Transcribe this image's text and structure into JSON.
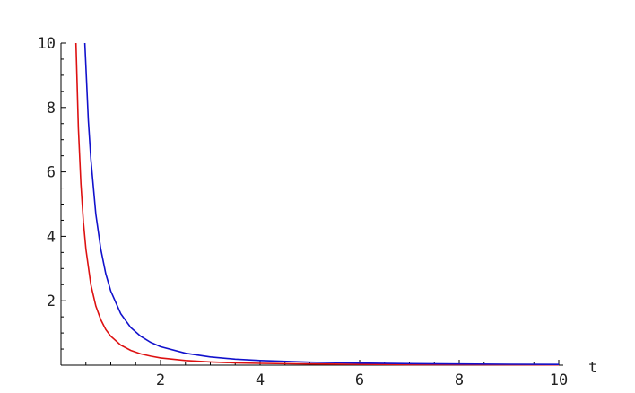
{
  "chart_data": {
    "type": "line",
    "title": "",
    "xlabel": "t",
    "ylabel": "",
    "xlim": [
      0,
      10
    ],
    "ylim": [
      0,
      10
    ],
    "x_ticks": [
      2,
      4,
      6,
      8,
      10
    ],
    "x_tick_labels": [
      "2",
      "4",
      "6",
      "8",
      "10"
    ],
    "y_ticks": [
      2,
      4,
      6,
      8,
      10
    ],
    "y_tick_labels": [
      "2",
      "4",
      "6",
      "8",
      "10"
    ],
    "grid": false,
    "legend": "none",
    "series": [
      {
        "color": "#dd1111",
        "x": [
          0.3,
          0.35,
          0.4,
          0.45,
          0.5,
          0.6,
          0.7,
          0.8,
          0.9,
          1.0,
          1.2,
          1.4,
          1.6,
          1.8,
          2.0,
          2.5,
          3.0,
          3.5,
          4.0,
          5.0,
          6.0,
          7.0,
          8.0,
          9.0,
          10.0
        ],
        "y": [
          10.0,
          7.35,
          5.63,
          4.44,
          3.6,
          2.5,
          1.84,
          1.41,
          1.11,
          0.9,
          0.625,
          0.46,
          0.35,
          0.28,
          0.225,
          0.144,
          0.1,
          0.073,
          0.056,
          0.036,
          0.025,
          0.018,
          0.014,
          0.011,
          0.009
        ]
      },
      {
        "color": "#1111cc",
        "x": [
          0.48,
          0.55,
          0.6,
          0.7,
          0.8,
          0.9,
          1.0,
          1.2,
          1.4,
          1.6,
          1.8,
          2.0,
          2.5,
          3.0,
          3.5,
          4.0,
          5.0,
          6.0,
          7.0,
          8.0,
          9.0,
          10.0
        ],
        "y": [
          10.0,
          7.6,
          6.4,
          4.7,
          3.6,
          2.84,
          2.3,
          1.6,
          1.17,
          0.9,
          0.71,
          0.575,
          0.37,
          0.255,
          0.188,
          0.144,
          0.092,
          0.064,
          0.047,
          0.036,
          0.028,
          0.023
        ]
      }
    ]
  }
}
